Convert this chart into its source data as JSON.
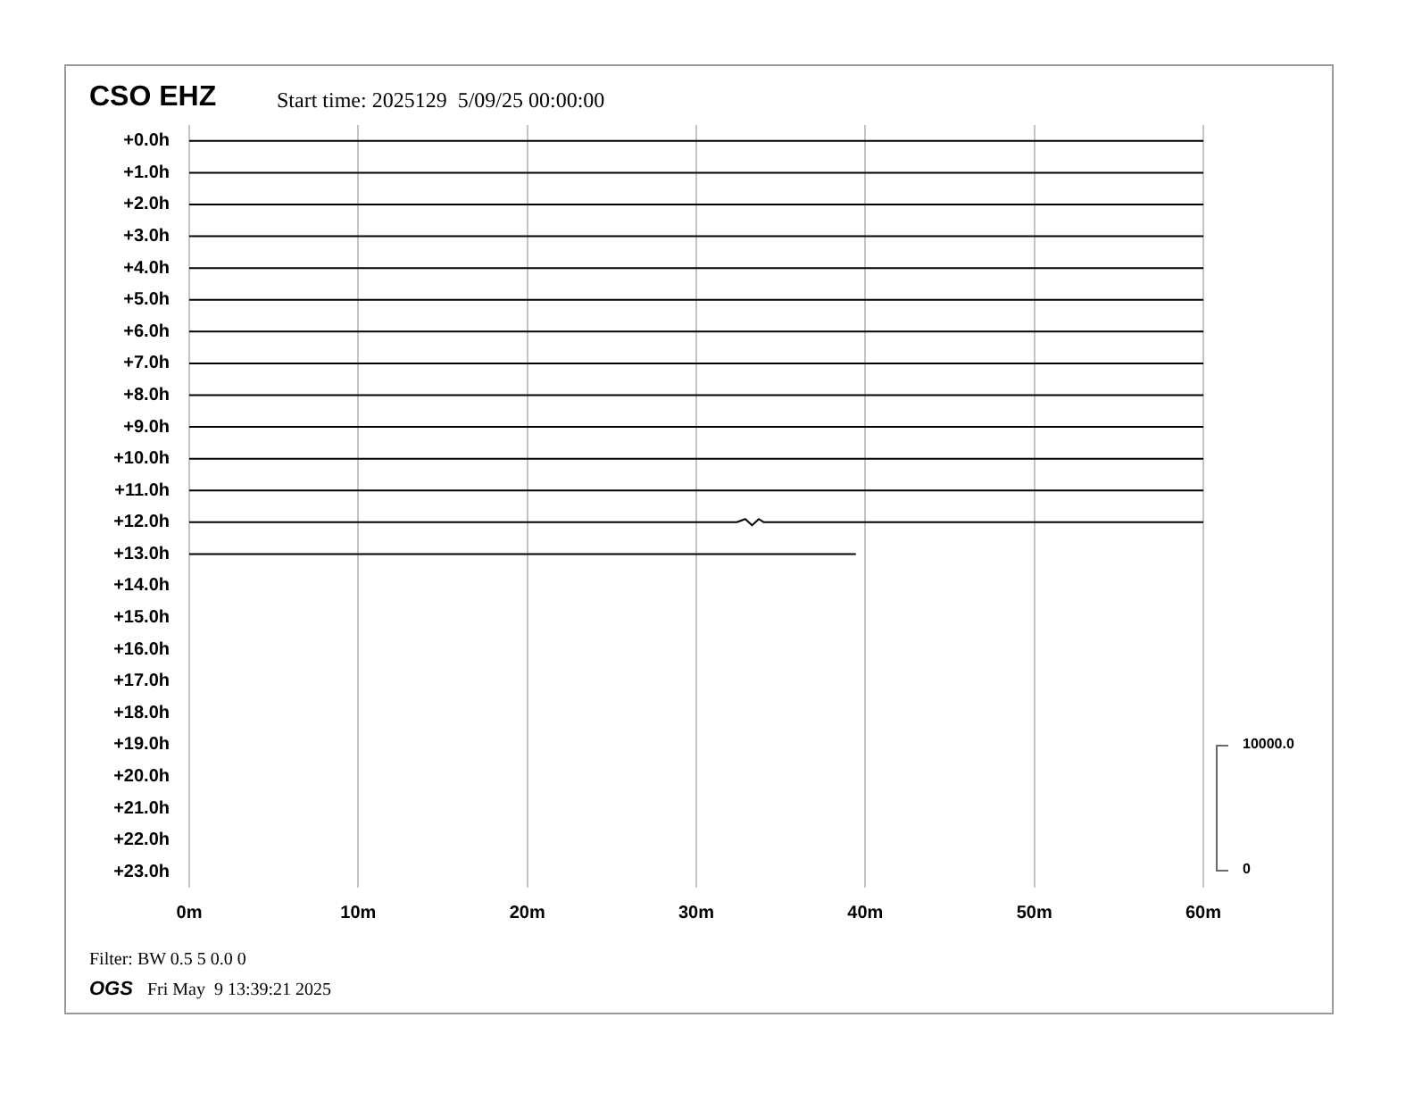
{
  "chart_data": {
    "type": "line",
    "title": "CSO EHZ",
    "subtitle": "Start time: 2025129  5/09/25 00:00:00",
    "annotations": [
      "10000.0",
      "0",
      "Filter: BW 0.5 5 0.0 0",
      "OGS",
      "Fri May  9 13:39:21 2025"
    ],
    "series": [
      {
        "color": "#000000",
        "x": [
          0,
          60
        ],
        "values": [
          0,
          0
        ]
      },
      {
        "color": "#000000",
        "x": [
          0,
          60
        ],
        "values": [
          1,
          1
        ]
      },
      {
        "color": "#000000",
        "x": [
          0,
          60
        ],
        "values": [
          2,
          2
        ]
      },
      {
        "color": "#000000",
        "x": [
          0,
          60
        ],
        "values": [
          3,
          3
        ]
      },
      {
        "color": "#000000",
        "x": [
          0,
          60
        ],
        "values": [
          4,
          4
        ]
      },
      {
        "color": "#000000",
        "x": [
          0,
          60
        ],
        "values": [
          5,
          5
        ]
      },
      {
        "color": "#000000",
        "x": [
          0,
          60
        ],
        "values": [
          6,
          6
        ]
      },
      {
        "color": "#000000",
        "x": [
          0,
          60
        ],
        "values": [
          7,
          7
        ]
      },
      {
        "color": "#000000",
        "x": [
          0,
          60
        ],
        "values": [
          8,
          8
        ]
      },
      {
        "color": "#000000",
        "x": [
          0,
          60
        ],
        "values": [
          9,
          9
        ]
      },
      {
        "color": "#000000",
        "x": [
          0,
          60
        ],
        "values": [
          10,
          10
        ]
      },
      {
        "color": "#000000",
        "x": [
          0,
          60
        ],
        "values": [
          11,
          11
        ]
      },
      {
        "color": "#000000",
        "x": [
          0,
          32.4,
          32.9,
          33.3,
          33.7,
          34,
          60
        ],
        "values": [
          12,
          12,
          11.9,
          12.1,
          11.9,
          12,
          12
        ]
      },
      {
        "color": "#000000",
        "x": [
          0,
          39.4
        ],
        "values": [
          13,
          13
        ]
      }
    ],
    "xlim": [
      0,
      60
    ],
    "xticks": [
      {
        "value": 0,
        "label": "0m"
      },
      {
        "value": 10,
        "label": "10m"
      },
      {
        "value": 20,
        "label": "20m"
      },
      {
        "value": 30,
        "label": "30m"
      },
      {
        "value": 40,
        "label": "40m"
      },
      {
        "value": 50,
        "label": "50m"
      },
      {
        "value": 60,
        "label": "60m"
      }
    ],
    "ylim": [
      23.5,
      -0.5
    ],
    "yticks": [
      {
        "value": 0,
        "label": "+0.0h"
      },
      {
        "value": 1,
        "label": "+1.0h"
      },
      {
        "value": 2,
        "label": "+2.0h"
      },
      {
        "value": 3,
        "label": "+3.0h"
      },
      {
        "value": 4,
        "label": "+4.0h"
      },
      {
        "value": 5,
        "label": "+5.0h"
      },
      {
        "value": 6,
        "label": "+6.0h"
      },
      {
        "value": 7,
        "label": "+7.0h"
      },
      {
        "value": 8,
        "label": "+8.0h"
      },
      {
        "value": 9,
        "label": "+9.0h"
      },
      {
        "value": 10,
        "label": "+10.0h"
      },
      {
        "value": 11,
        "label": "+11.0h"
      },
      {
        "value": 12,
        "label": "+12.0h"
      },
      {
        "value": 13,
        "label": "+13.0h"
      },
      {
        "value": 14,
        "label": "+14.0h"
      },
      {
        "value": 15,
        "label": "+15.0h"
      },
      {
        "value": 16,
        "label": "+16.0h"
      },
      {
        "value": 17,
        "label": "+17.0h"
      },
      {
        "value": 18,
        "label": "+18.0h"
      },
      {
        "value": 19,
        "label": "+19.0h"
      },
      {
        "value": 20,
        "label": "+20.0h"
      },
      {
        "value": 21,
        "label": "+21.0h"
      },
      {
        "value": 22,
        "label": "+22.0h"
      },
      {
        "value": 23,
        "label": "+23.0h"
      }
    ],
    "grid": "x",
    "legend": false,
    "marker": "none",
    "line_style": "solid"
  }
}
